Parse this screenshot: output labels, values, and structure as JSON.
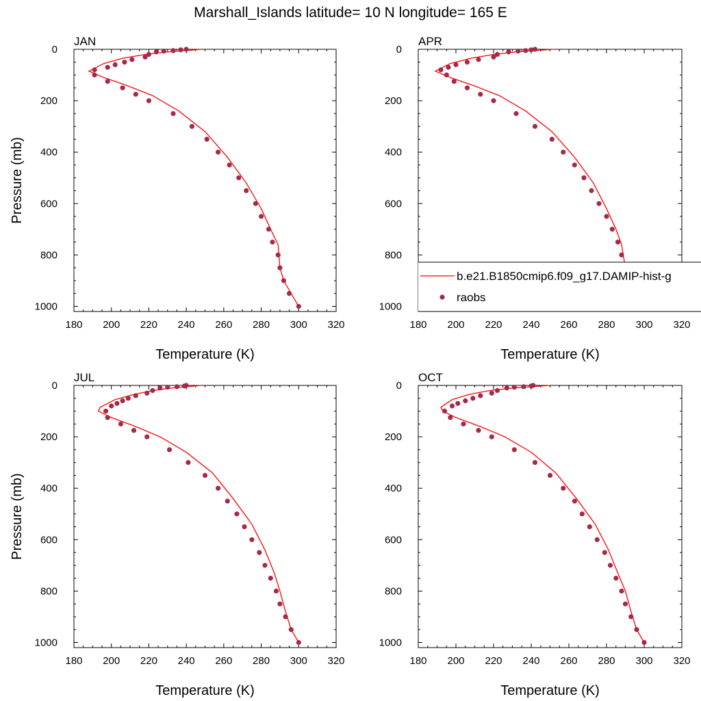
{
  "title": "Marshall_Islands  latitude= 10 N longitude= 165 E",
  "colors": {
    "model": "#ff0000",
    "obs": "#a52a4a"
  },
  "legend": {
    "model_label": "b.e21.B1850cmip6.f09_g17.DAMIP-hist-g",
    "obs_label": "raobs"
  },
  "chart_data": [
    {
      "type": "line",
      "title": "JAN",
      "xlabel": "Temperature (K)",
      "ylabel": "Pressure (mb)",
      "xlim": [
        180,
        320
      ],
      "ylim": [
        1020,
        0
      ],
      "y_inverted": true,
      "xticks": [
        "180",
        "200",
        "220",
        "240",
        "260",
        "280",
        "300",
        "320"
      ],
      "yticks": [
        "0",
        "200",
        "400",
        "600",
        "800",
        "1000"
      ],
      "series": [
        {
          "name": "b.e21.B1850cmip6.f09_g17.DAMIP-hist-g",
          "style": "line",
          "x": [
            248,
            240,
            230,
            218,
            206,
            196,
            188,
            196,
            208,
            222,
            236,
            250,
            262,
            272,
            280,
            285,
            289,
            290,
            292,
            296,
            300
          ],
          "y": [
            0,
            5,
            10,
            20,
            35,
            55,
            85,
            110,
            140,
            180,
            240,
            320,
            420,
            520,
            620,
            700,
            760,
            850,
            900,
            950,
            1000
          ]
        },
        {
          "name": "raobs",
          "style": "markers",
          "x": [
            240,
            237,
            233,
            228,
            224,
            220,
            218,
            211,
            207,
            202,
            198,
            191,
            191,
            198,
            206,
            213,
            220,
            233,
            243,
            251,
            257,
            263,
            268,
            272,
            277,
            280,
            284,
            286,
            289,
            290,
            292,
            295,
            300
          ],
          "y": [
            0,
            2,
            5,
            7,
            10,
            20,
            30,
            40,
            50,
            60,
            70,
            80,
            100,
            125,
            150,
            175,
            200,
            250,
            300,
            350,
            400,
            450,
            500,
            550,
            600,
            650,
            700,
            750,
            800,
            850,
            900,
            950,
            1000
          ]
        }
      ]
    },
    {
      "type": "line",
      "title": "APR",
      "xlabel": "Temperature (K)",
      "ylabel": "",
      "xlim": [
        180,
        320
      ],
      "ylim": [
        1020,
        0
      ],
      "y_inverted": true,
      "xticks": [
        "180",
        "200",
        "220",
        "240",
        "260",
        "280",
        "300",
        "320"
      ],
      "yticks": [
        "0",
        "200",
        "400",
        "600",
        "800",
        "1000"
      ],
      "series": [
        {
          "name": "b.e21.B1850cmip6.f09_g17.DAMIP-hist-g",
          "style": "line",
          "x": [
            252,
            242,
            232,
            220,
            208,
            197,
            189,
            197,
            209,
            223,
            237,
            251,
            263,
            273,
            280,
            285,
            288,
            290,
            294,
            297,
            305
          ],
          "y": [
            0,
            5,
            10,
            20,
            35,
            55,
            85,
            110,
            140,
            180,
            240,
            320,
            420,
            520,
            620,
            700,
            760,
            850,
            900,
            950,
            1000
          ]
        },
        {
          "name": "raobs",
          "style": "markers",
          "x": [
            242,
            240,
            237,
            233,
            228,
            222,
            220,
            212,
            206,
            200,
            196,
            192,
            195,
            199,
            206,
            213,
            220,
            232,
            242,
            251,
            257,
            263,
            268,
            272,
            276,
            280,
            283,
            286,
            288,
            290,
            292,
            296,
            300
          ],
          "y": [
            0,
            2,
            5,
            7,
            10,
            20,
            30,
            40,
            50,
            60,
            70,
            80,
            100,
            125,
            150,
            175,
            200,
            250,
            300,
            350,
            400,
            450,
            500,
            550,
            600,
            650,
            700,
            750,
            800,
            850,
            900,
            950,
            1000
          ]
        }
      ]
    },
    {
      "type": "line",
      "title": "JUL",
      "xlabel": "Temperature (K)",
      "ylabel": "Pressure (mb)",
      "xlim": [
        180,
        320
      ],
      "ylim": [
        1020,
        0
      ],
      "y_inverted": true,
      "xticks": [
        "180",
        "200",
        "220",
        "240",
        "260",
        "280",
        "300",
        "320"
      ],
      "yticks": [
        "0",
        "200",
        "400",
        "600",
        "800",
        "1000"
      ],
      "series": [
        {
          "name": "b.e21.B1850cmip6.f09_g17.DAMIP-hist-g",
          "style": "line",
          "x": [
            248,
            240,
            232,
            222,
            212,
            202,
            194,
            193,
            200,
            213,
            226,
            240,
            254,
            265,
            275,
            282,
            287,
            290,
            293,
            296,
            300
          ],
          "y": [
            0,
            5,
            10,
            20,
            35,
            55,
            85,
            100,
            125,
            160,
            200,
            260,
            340,
            440,
            540,
            640,
            730,
            800,
            880,
            950,
            1000
          ]
        },
        {
          "name": "raobs",
          "style": "markers",
          "x": [
            240,
            239,
            235,
            230,
            226,
            222,
            219,
            213,
            209,
            206,
            203,
            200,
            197,
            198,
            205,
            212,
            219,
            231,
            241,
            250,
            257,
            262,
            267,
            271,
            275,
            279,
            282,
            285,
            288,
            290,
            293,
            296,
            300
          ],
          "y": [
            0,
            2,
            5,
            7,
            10,
            20,
            30,
            40,
            50,
            60,
            70,
            80,
            100,
            125,
            150,
            175,
            200,
            250,
            300,
            350,
            400,
            450,
            500,
            550,
            600,
            650,
            700,
            750,
            800,
            850,
            900,
            950,
            1000
          ]
        }
      ]
    },
    {
      "type": "line",
      "title": "OCT",
      "xlabel": "Temperature (K)",
      "ylabel": "",
      "xlim": [
        180,
        320
      ],
      "ylim": [
        1020,
        0
      ],
      "y_inverted": true,
      "xticks": [
        "180",
        "200",
        "220",
        "240",
        "260",
        "280",
        "300",
        "320"
      ],
      "yticks": [
        "0",
        "200",
        "400",
        "600",
        "800",
        "1000"
      ],
      "series": [
        {
          "name": "b.e21.B1850cmip6.f09_g17.DAMIP-hist-g",
          "style": "line",
          "x": [
            250,
            240,
            230,
            218,
            207,
            198,
            192,
            193,
            200,
            213,
            226,
            240,
            253,
            264,
            274,
            281,
            286,
            290,
            293,
            296,
            300
          ],
          "y": [
            0,
            5,
            10,
            20,
            35,
            55,
            85,
            100,
            125,
            160,
            200,
            260,
            340,
            440,
            540,
            640,
            730,
            800,
            880,
            950,
            1000
          ]
        },
        {
          "name": "raobs",
          "style": "markers",
          "x": [
            241,
            240,
            236,
            231,
            227,
            222,
            219,
            213,
            209,
            205,
            201,
            198,
            194,
            197,
            204,
            212,
            219,
            231,
            242,
            250,
            257,
            263,
            267,
            271,
            275,
            279,
            282,
            285,
            288,
            290,
            293,
            296,
            300
          ],
          "y": [
            0,
            2,
            5,
            7,
            10,
            20,
            30,
            40,
            50,
            60,
            70,
            80,
            100,
            125,
            150,
            175,
            200,
            250,
            300,
            350,
            400,
            450,
            500,
            550,
            600,
            650,
            700,
            750,
            800,
            850,
            900,
            950,
            1000
          ]
        }
      ]
    }
  ]
}
